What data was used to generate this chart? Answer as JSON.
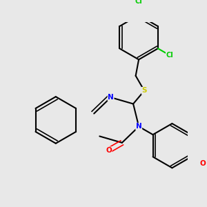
{
  "background_color": "#e8e8e8",
  "bond_color": "#000000",
  "atom_colors": {
    "N": "#0000ff",
    "O_carbonyl": "#ff0000",
    "O_ether": "#ff0000",
    "S": "#cccc00",
    "Cl": "#00cc00",
    "C": "#000000"
  },
  "figsize": [
    3.0,
    3.0
  ],
  "dpi": 100
}
